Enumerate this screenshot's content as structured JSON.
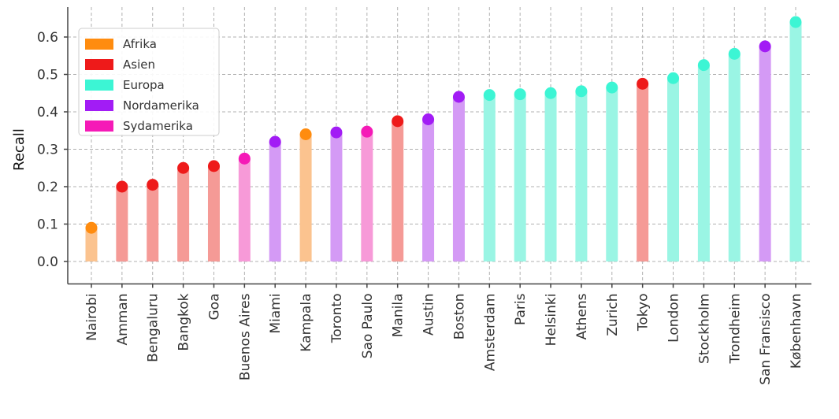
{
  "chart_data": {
    "type": "bar",
    "ylabel": "Recall",
    "xlabel": "",
    "title": "",
    "ylim": [
      -0.06,
      0.68
    ],
    "yticks": [
      "0.0",
      "0.1",
      "0.2",
      "0.3",
      "0.4",
      "0.5",
      "0.6"
    ],
    "grid": true,
    "legend_position": "top-left",
    "legend": [
      {
        "name": "Afrika",
        "color": "#ff8c0f"
      },
      {
        "name": "Asien",
        "color": "#ee1a1a"
      },
      {
        "name": "Europa",
        "color": "#3cf5d4"
      },
      {
        "name": "Nordamerika",
        "color": "#a21cf5"
      },
      {
        "name": "Sydamerika",
        "color": "#f51ab7"
      }
    ],
    "bar_colors": {
      "Afrika": "#fbc38f",
      "Asien": "#f59a96",
      "Europa": "#9af5e4",
      "Nordamerika": "#d49af5",
      "Sydamerika": "#f79ad8"
    },
    "points": [
      {
        "city": "Nairobi",
        "value": 0.09,
        "region": "Afrika"
      },
      {
        "city": "Amman",
        "value": 0.2,
        "region": "Asien"
      },
      {
        "city": "Bengaluru",
        "value": 0.205,
        "region": "Asien"
      },
      {
        "city": "Bangkok",
        "value": 0.25,
        "region": "Asien"
      },
      {
        "city": "Goa",
        "value": 0.255,
        "region": "Asien"
      },
      {
        "city": "Buenos Aires",
        "value": 0.275,
        "region": "Sydamerika"
      },
      {
        "city": "Miami",
        "value": 0.32,
        "region": "Nordamerika"
      },
      {
        "city": "Kampala",
        "value": 0.34,
        "region": "Afrika"
      },
      {
        "city": "Toronto",
        "value": 0.345,
        "region": "Nordamerika"
      },
      {
        "city": "Sao Paulo",
        "value": 0.347,
        "region": "Sydamerika"
      },
      {
        "city": "Manila",
        "value": 0.375,
        "region": "Asien"
      },
      {
        "city": "Austin",
        "value": 0.38,
        "region": "Nordamerika"
      },
      {
        "city": "Boston",
        "value": 0.44,
        "region": "Nordamerika"
      },
      {
        "city": "Amsterdam",
        "value": 0.445,
        "region": "Europa"
      },
      {
        "city": "Paris",
        "value": 0.447,
        "region": "Europa"
      },
      {
        "city": "Helsinki",
        "value": 0.45,
        "region": "Europa"
      },
      {
        "city": "Athens",
        "value": 0.455,
        "region": "Europa"
      },
      {
        "city": "Zurich",
        "value": 0.465,
        "region": "Europa"
      },
      {
        "city": "Tokyo",
        "value": 0.475,
        "region": "Asien"
      },
      {
        "city": "London",
        "value": 0.49,
        "region": "Europa"
      },
      {
        "city": "Stockholm",
        "value": 0.525,
        "region": "Europa"
      },
      {
        "city": "Trondheim",
        "value": 0.555,
        "region": "Europa"
      },
      {
        "city": "San Fransisco",
        "value": 0.575,
        "region": "Nordamerika"
      },
      {
        "city": "København",
        "value": 0.64,
        "region": "Europa"
      }
    ]
  }
}
